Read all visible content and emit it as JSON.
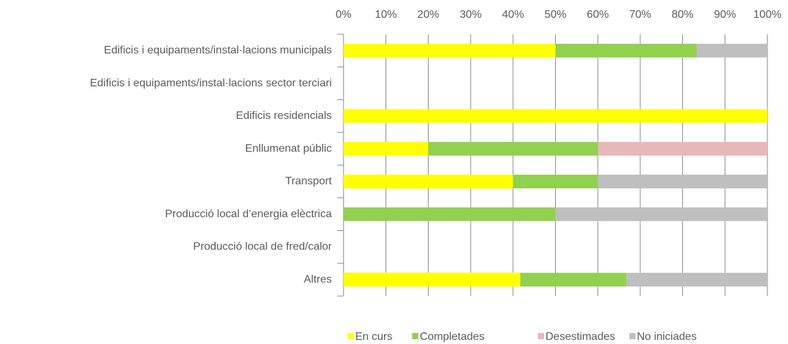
{
  "chart_data": {
    "type": "stacked_barh",
    "categories": [
      "Edificis i equipaments/instal·lacions municipals",
      "Edificis i equipaments/instal·lacions sector terciari",
      "Edificis residencials",
      "Enllumenat públic",
      "Transport",
      "Producció local d’energia elèctrica",
      "Producció local de fred/calor",
      "Altres"
    ],
    "series": [
      {
        "name": "En curs",
        "color": "#ffff00",
        "values": [
          50,
          0,
          100,
          20,
          40,
          0,
          0,
          41.7
        ]
      },
      {
        "name": "Completades",
        "color": "#92d050",
        "values": [
          33.3,
          0,
          0,
          40,
          20,
          50,
          0,
          25
        ]
      },
      {
        "name": "Desestimades",
        "color": "#e6b9b8",
        "values": [
          0,
          0,
          0,
          40,
          0,
          0,
          0,
          0
        ]
      },
      {
        "name": "No iniciades",
        "color": "#bfbfbf",
        "values": [
          16.7,
          0,
          0,
          0,
          40,
          50,
          0,
          33.3
        ]
      }
    ],
    "xlim": [
      0,
      100
    ],
    "xticks": [
      {
        "value": 0,
        "label": "0%"
      },
      {
        "value": 10,
        "label": "10%"
      },
      {
        "value": 20,
        "label": "20%"
      },
      {
        "value": 30,
        "label": "30%"
      },
      {
        "value": 40,
        "label": "40%"
      },
      {
        "value": 50,
        "label": "50%"
      },
      {
        "value": 60,
        "label": "60%"
      },
      {
        "value": 70,
        "label": "70%"
      },
      {
        "value": 80,
        "label": "80%"
      },
      {
        "value": 90,
        "label": "90%"
      },
      {
        "value": 100,
        "label": "100%"
      }
    ],
    "grid": true,
    "legend": "bottom"
  }
}
